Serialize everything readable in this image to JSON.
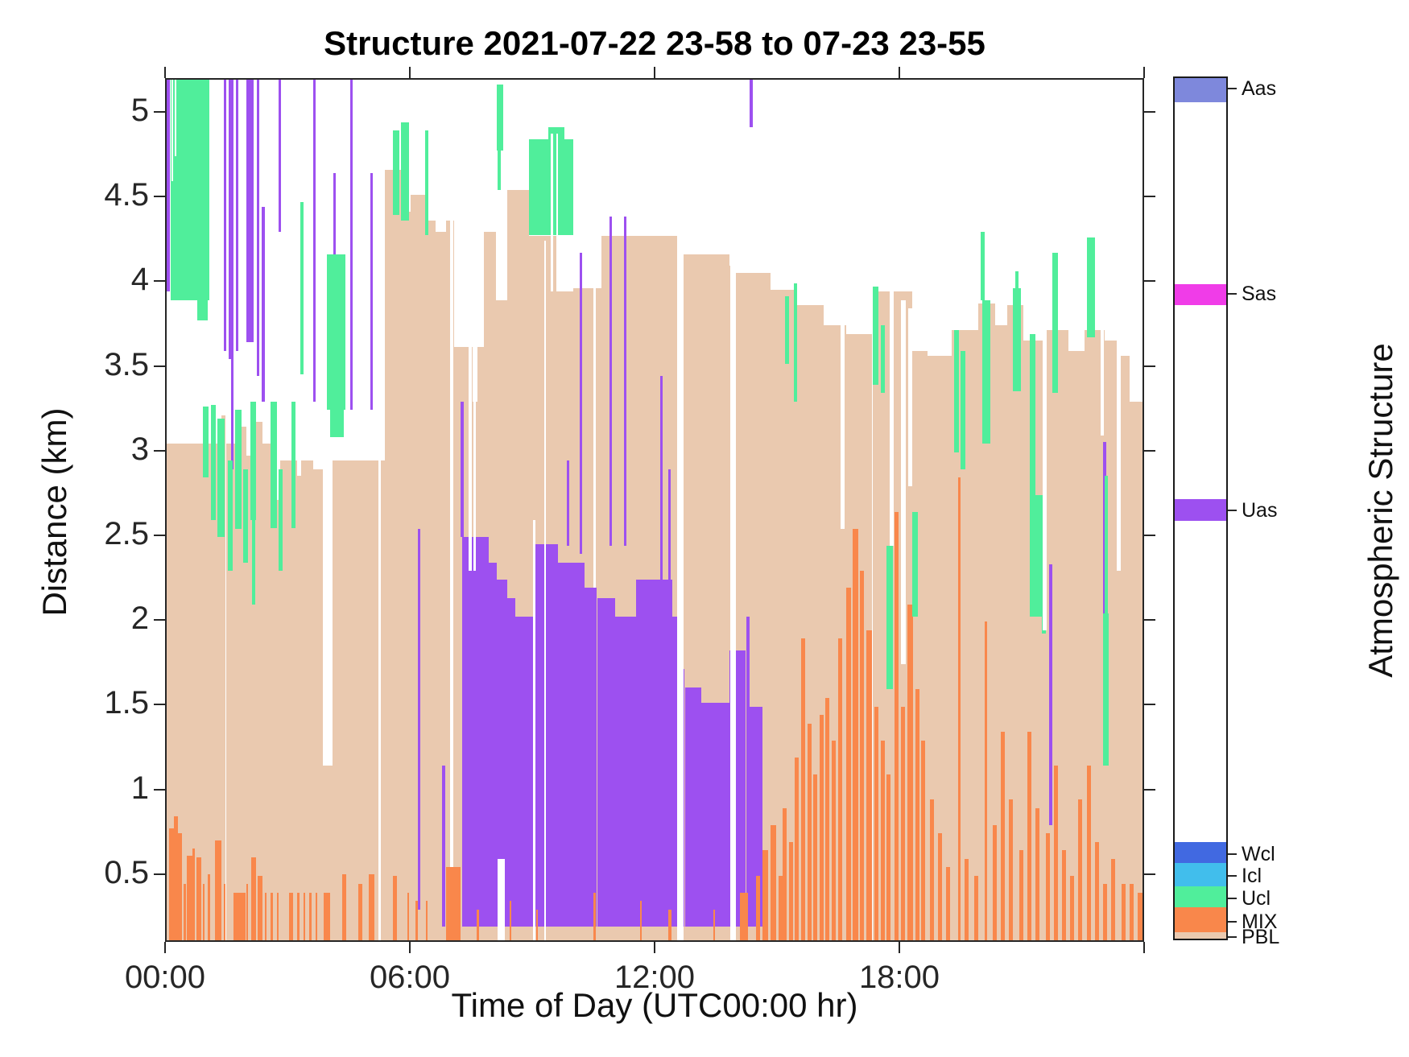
{
  "title": "Structure 2021-07-22 23-58 to 07-23 23-55",
  "chart_data": {
    "type": "area",
    "title": "Structure 2021-07-22 23-58 to 07-23 23-55",
    "xlabel": "Time of Day (UTC00:00 hr)",
    "ylabel": "Distance (km)",
    "right_label": "Atmospheric Structure",
    "xlim": [
      0,
      24
    ],
    "ylim": [
      0.1,
      5.2
    ],
    "baseline": 0.1,
    "grid": false,
    "xticks": [
      {
        "value": 0,
        "label": "00:00"
      },
      {
        "value": 6,
        "label": "06:00"
      },
      {
        "value": 12,
        "label": "12:00"
      },
      {
        "value": 18,
        "label": "18:00"
      },
      {
        "value": 24,
        "label": ""
      }
    ],
    "yticks": [
      {
        "value": 5,
        "label": "5"
      },
      {
        "value": 4.5,
        "label": "4.5"
      },
      {
        "value": 4,
        "label": "4"
      },
      {
        "value": 3.5,
        "label": "3.5"
      },
      {
        "value": 3,
        "label": "3"
      },
      {
        "value": 2.5,
        "label": "2.5"
      },
      {
        "value": 2,
        "label": "2"
      },
      {
        "value": 1.5,
        "label": "1.5"
      },
      {
        "value": 1,
        "label": "1"
      },
      {
        "value": 0.5,
        "label": "0.5"
      }
    ],
    "colors": {
      "pbl": "#EAC9AF",
      "mix": "#F9874B",
      "ucl": "#50EE9B",
      "icl": "#41BEEC",
      "wcl": "#4169E1",
      "uas": "#9D50F0",
      "sas": "#F03CE8",
      "aas": "#7E88DC",
      "gap": "#FFFFFF",
      "axis": "#262626"
    },
    "pbl_bars": [
      [
        0,
        0.9,
        3.05
      ],
      [
        0.9,
        1.0,
        2.95
      ],
      [
        1.0,
        1.35,
        3.05
      ],
      [
        1.35,
        1.45,
        3.22
      ],
      [
        1.45,
        1.8,
        3.05
      ],
      [
        1.8,
        1.95,
        3.15
      ],
      [
        1.95,
        2.15,
        2.98
      ],
      [
        2.15,
        2.35,
        3.18
      ],
      [
        2.35,
        2.6,
        3.05
      ],
      [
        2.6,
        2.78,
        2.72
      ],
      [
        2.78,
        3.2,
        2.95
      ],
      [
        3.2,
        3.3,
        2.86
      ],
      [
        3.3,
        3.6,
        2.95
      ],
      [
        3.6,
        3.83,
        2.9
      ],
      [
        3.83,
        4.07,
        1.15
      ],
      [
        4.07,
        5.35,
        2.95
      ],
      [
        5.35,
        5.6,
        4.67
      ],
      [
        5.6,
        5.7,
        4.42
      ],
      [
        5.7,
        5.78,
        4.67
      ],
      [
        5.78,
        5.98,
        4.42
      ],
      [
        5.98,
        6.35,
        4.52
      ],
      [
        6.35,
        6.6,
        4.37
      ],
      [
        6.6,
        6.85,
        4.3
      ],
      [
        6.85,
        7.05,
        4.37
      ],
      [
        7.05,
        7.5,
        3.62
      ],
      [
        7.5,
        7.62,
        3.3
      ],
      [
        7.62,
        7.78,
        3.62
      ],
      [
        7.78,
        8.08,
        4.3
      ],
      [
        8.08,
        8.35,
        3.9
      ],
      [
        8.35,
        8.88,
        4.55
      ],
      [
        8.88,
        9.6,
        4.28
      ],
      [
        9.6,
        9.96,
        3.95
      ],
      [
        9.96,
        10.65,
        3.97
      ],
      [
        10.65,
        12.65,
        4.28
      ],
      [
        12.65,
        13.8,
        4.17
      ],
      [
        13.8,
        13.95,
        4.1
      ],
      [
        13.95,
        14.8,
        4.06
      ],
      [
        14.8,
        15.4,
        3.96
      ],
      [
        15.4,
        16.1,
        3.87
      ],
      [
        16.1,
        16.65,
        3.75
      ],
      [
        16.65,
        17.3,
        3.7
      ],
      [
        17.3,
        18.28,
        3.95
      ],
      [
        18.28,
        18.65,
        3.6
      ],
      [
        18.65,
        19.25,
        3.57
      ],
      [
        19.25,
        19.9,
        3.72
      ],
      [
        19.9,
        20.3,
        3.88
      ],
      [
        20.3,
        20.6,
        3.75
      ],
      [
        20.6,
        21.0,
        3.87
      ],
      [
        21.0,
        21.5,
        3.66
      ],
      [
        21.5,
        22.1,
        3.72
      ],
      [
        22.1,
        22.5,
        3.6
      ],
      [
        22.5,
        23.0,
        3.72
      ],
      [
        23.0,
        23.38,
        3.66
      ],
      [
        23.38,
        23.6,
        3.57
      ],
      [
        23.6,
        23.92,
        3.3
      ]
    ],
    "mix_bars": [
      [
        0.05,
        0.18,
        0.78
      ],
      [
        0.18,
        0.28,
        0.85
      ],
      [
        0.28,
        0.38,
        0.75
      ],
      [
        0.42,
        0.47,
        0.45
      ],
      [
        0.5,
        0.63,
        0.62
      ],
      [
        0.63,
        0.7,
        0.66
      ],
      [
        0.73,
        0.85,
        0.61
      ],
      [
        0.88,
        0.93,
        0.45
      ],
      [
        1.0,
        1.07,
        0.51
      ],
      [
        1.18,
        1.35,
        0.71
      ],
      [
        1.4,
        1.45,
        0.45
      ],
      [
        1.64,
        1.93,
        0.4
      ],
      [
        1.95,
        2.0,
        0.45
      ],
      [
        2.07,
        2.2,
        0.61
      ],
      [
        2.23,
        2.35,
        0.5
      ],
      [
        2.4,
        2.45,
        0.4
      ],
      [
        2.55,
        2.6,
        0.4
      ],
      [
        2.7,
        2.75,
        0.4
      ],
      [
        3.0,
        3.1,
        0.4
      ],
      [
        3.2,
        3.25,
        0.4
      ],
      [
        3.35,
        3.4,
        0.4
      ],
      [
        3.5,
        3.55,
        0.4
      ],
      [
        3.65,
        3.7,
        0.4
      ],
      [
        3.85,
        4.0,
        0.4
      ],
      [
        4.3,
        4.4,
        0.51
      ],
      [
        4.7,
        4.8,
        0.45
      ],
      [
        4.95,
        5.1,
        0.51
      ],
      [
        5.55,
        5.65,
        0.5
      ],
      [
        5.9,
        5.95,
        0.4
      ],
      [
        6.1,
        6.15,
        0.35
      ],
      [
        6.35,
        6.4,
        0.35
      ],
      [
        6.85,
        7.2,
        0.55
      ],
      [
        7.6,
        7.65,
        0.3
      ],
      [
        8.4,
        8.45,
        0.35
      ],
      [
        9.05,
        9.1,
        0.3
      ],
      [
        10.45,
        10.52,
        0.4
      ],
      [
        11.6,
        11.65,
        0.35
      ],
      [
        12.3,
        12.38,
        0.3
      ],
      [
        13.4,
        13.45,
        0.3
      ],
      [
        14.05,
        14.25,
        0.4
      ],
      [
        14.45,
        14.55,
        0.5
      ],
      [
        14.6,
        14.75,
        0.65
      ],
      [
        14.8,
        14.95,
        0.8
      ],
      [
        15.0,
        15.1,
        0.5
      ],
      [
        15.1,
        15.2,
        0.9
      ],
      [
        15.25,
        15.35,
        0.7
      ],
      [
        15.4,
        15.5,
        1.2
      ],
      [
        15.55,
        15.65,
        1.9
      ],
      [
        15.7,
        15.8,
        1.4
      ],
      [
        15.85,
        15.95,
        1.1
      ],
      [
        16.0,
        16.1,
        1.45
      ],
      [
        16.15,
        16.25,
        1.55
      ],
      [
        16.3,
        16.4,
        1.3
      ],
      [
        16.45,
        16.55,
        1.9
      ],
      [
        16.65,
        16.78,
        2.2
      ],
      [
        16.82,
        16.95,
        2.55
      ],
      [
        17.0,
        17.1,
        2.3
      ],
      [
        17.15,
        17.3,
        1.95
      ],
      [
        17.35,
        17.45,
        1.5
      ],
      [
        17.5,
        17.6,
        1.3
      ],
      [
        17.65,
        17.75,
        1.1
      ],
      [
        17.85,
        17.95,
        2.65
      ],
      [
        18.0,
        18.1,
        1.5
      ],
      [
        18.15,
        18.3,
        2.1
      ],
      [
        18.35,
        18.45,
        1.6
      ],
      [
        18.5,
        18.6,
        1.3
      ],
      [
        18.7,
        18.8,
        0.95
      ],
      [
        18.9,
        19.0,
        0.75
      ],
      [
        19.1,
        19.2,
        0.55
      ],
      [
        19.4,
        19.47,
        2.85
      ],
      [
        19.55,
        19.65,
        0.6
      ],
      [
        19.8,
        19.9,
        0.5
      ],
      [
        20.05,
        20.12,
        2.0
      ],
      [
        20.25,
        20.35,
        0.8
      ],
      [
        20.45,
        20.55,
        1.35
      ],
      [
        20.65,
        20.75,
        0.95
      ],
      [
        20.9,
        21.0,
        0.65
      ],
      [
        21.1,
        21.2,
        1.35
      ],
      [
        21.3,
        21.4,
        0.9
      ],
      [
        21.55,
        21.65,
        0.75
      ],
      [
        21.75,
        21.85,
        1.15
      ],
      [
        21.95,
        22.05,
        0.65
      ],
      [
        22.15,
        22.25,
        0.5
      ],
      [
        22.35,
        22.45,
        0.95
      ],
      [
        22.55,
        22.65,
        1.15
      ],
      [
        22.75,
        22.85,
        0.7
      ],
      [
        22.95,
        23.05,
        0.45
      ],
      [
        23.15,
        23.25,
        0.6
      ],
      [
        23.4,
        23.5,
        0.45
      ],
      [
        23.6,
        23.7,
        0.45
      ],
      [
        23.8,
        23.92,
        0.4
      ]
    ],
    "uas_segments": [
      [
        0.0,
        0.08,
        3.95,
        5.2
      ],
      [
        1.4,
        1.47,
        3.6,
        5.2
      ],
      [
        1.52,
        1.58,
        3.55,
        5.2
      ],
      [
        1.58,
        1.64,
        2.9,
        5.2
      ],
      [
        1.7,
        1.76,
        3.6,
        5.2
      ],
      [
        1.95,
        2.13,
        3.65,
        5.2
      ],
      [
        2.2,
        2.27,
        3.45,
        5.2
      ],
      [
        2.33,
        2.4,
        3.3,
        4.45
      ],
      [
        2.74,
        2.8,
        4.3,
        5.2
      ],
      [
        3.6,
        3.66,
        3.3,
        5.2
      ],
      [
        4.08,
        4.15,
        3.25,
        4.65
      ],
      [
        4.5,
        4.56,
        3.25,
        5.2
      ],
      [
        5.0,
        5.06,
        3.25,
        4.65
      ],
      [
        6.15,
        6.22,
        0.3,
        2.55
      ],
      [
        6.75,
        6.82,
        0.2,
        1.15
      ],
      [
        7.2,
        7.28,
        2.5,
        3.3
      ],
      [
        9.8,
        9.87,
        2.45,
        2.95
      ],
      [
        10.12,
        10.18,
        2.4,
        4.18
      ],
      [
        10.85,
        10.92,
        2.45,
        4.39
      ],
      [
        11.2,
        11.27,
        2.45,
        4.39
      ],
      [
        12.1,
        12.16,
        2.25,
        3.45
      ],
      [
        12.3,
        12.36,
        2.25,
        2.9
      ],
      [
        14.28,
        14.36,
        4.92,
        5.2
      ],
      [
        17.88,
        17.95,
        1.55,
        2.55
      ],
      [
        21.64,
        21.71,
        0.8,
        2.34
      ],
      [
        22.95,
        23.03,
        2.03,
        3.06
      ],
      [
        7.25,
        7.9,
        0.2,
        2.5
      ],
      [
        7.9,
        8.1,
        0.2,
        2.35
      ],
      [
        8.1,
        8.35,
        0.2,
        2.25
      ],
      [
        8.35,
        8.55,
        0.2,
        2.14
      ],
      [
        8.55,
        9.0,
        0.2,
        2.03
      ],
      [
        9.0,
        9.6,
        0.2,
        2.46
      ],
      [
        9.6,
        10.25,
        0.2,
        2.35
      ],
      [
        10.25,
        10.55,
        0.2,
        2.2
      ],
      [
        10.55,
        11.0,
        0.2,
        2.14
      ],
      [
        11.0,
        11.5,
        0.2,
        2.03
      ],
      [
        11.5,
        12.4,
        0.2,
        2.25
      ],
      [
        12.4,
        12.55,
        0.2,
        2.03
      ],
      [
        12.55,
        12.7,
        0.2,
        1.72
      ],
      [
        12.7,
        13.1,
        0.2,
        1.61
      ],
      [
        13.1,
        13.8,
        0.2,
        1.52
      ],
      [
        13.8,
        14.2,
        0.2,
        1.83
      ],
      [
        14.2,
        14.28,
        0.2,
        2.03
      ],
      [
        14.28,
        14.6,
        0.2,
        1.5
      ]
    ],
    "ucl_segments": [
      [
        0.1,
        1.05,
        3.9,
        5.2
      ],
      [
        0.75,
        1.0,
        3.78,
        3.9
      ],
      [
        0.88,
        1.02,
        2.85,
        3.27
      ],
      [
        1.08,
        1.2,
        2.6,
        3.28
      ],
      [
        1.25,
        1.42,
        2.5,
        3.2
      ],
      [
        1.5,
        1.62,
        2.3,
        2.95
      ],
      [
        1.67,
        1.83,
        2.55,
        3.25
      ],
      [
        1.88,
        2.0,
        2.35,
        2.9
      ],
      [
        2.05,
        2.2,
        2.6,
        3.3
      ],
      [
        2.1,
        2.18,
        2.1,
        2.6
      ],
      [
        2.55,
        2.7,
        2.55,
        3.3
      ],
      [
        2.75,
        2.85,
        2.3,
        2.9
      ],
      [
        3.05,
        3.15,
        2.55,
        3.3
      ],
      [
        3.28,
        3.35,
        3.46,
        4.48
      ],
      [
        3.92,
        4.38,
        3.25,
        4.17
      ],
      [
        4.0,
        4.35,
        3.09,
        3.25
      ],
      [
        5.55,
        5.7,
        4.4,
        4.9
      ],
      [
        5.75,
        5.95,
        4.37,
        4.95
      ],
      [
        6.33,
        6.42,
        4.28,
        4.9
      ],
      [
        8.1,
        8.25,
        4.78,
        5.17
      ],
      [
        8.12,
        8.2,
        4.55,
        4.78
      ],
      [
        8.88,
        9.96,
        4.28,
        4.85
      ],
      [
        9.35,
        9.75,
        4.85,
        4.92
      ],
      [
        15.15,
        15.25,
        3.52,
        3.92
      ],
      [
        15.38,
        15.46,
        3.3,
        4.0
      ],
      [
        17.3,
        17.45,
        3.4,
        3.98
      ],
      [
        17.5,
        17.6,
        3.35,
        3.75
      ],
      [
        17.65,
        17.8,
        1.6,
        2.45
      ],
      [
        18.28,
        18.42,
        2.03,
        2.65
      ],
      [
        19.3,
        19.42,
        3.0,
        3.72
      ],
      [
        19.46,
        19.58,
        2.9,
        3.6
      ],
      [
        19.95,
        20.05,
        3.9,
        4.3
      ],
      [
        20.0,
        20.2,
        3.05,
        3.9
      ],
      [
        20.75,
        20.95,
        3.36,
        3.97
      ],
      [
        20.8,
        20.88,
        3.97,
        4.07
      ],
      [
        21.15,
        21.3,
        2.55,
        3.7
      ],
      [
        21.15,
        21.55,
        2.03,
        2.75
      ],
      [
        21.45,
        21.55,
        1.93,
        2.03
      ],
      [
        21.7,
        21.85,
        3.35,
        4.18
      ],
      [
        22.55,
        22.75,
        3.68,
        4.27
      ],
      [
        22.95,
        23.1,
        1.15,
        2.05
      ],
      [
        23.0,
        23.08,
        2.05,
        2.86
      ]
    ],
    "gap_segments": [
      [
        0.12,
        0.16,
        4.6,
        5.2
      ],
      [
        0.2,
        0.24,
        4.75,
        5.2
      ],
      [
        5.18,
        5.25,
        0.1,
        2.95
      ],
      [
        6.95,
        7.03,
        0.55,
        4.37
      ],
      [
        7.4,
        7.48,
        2.3,
        3.65
      ],
      [
        7.52,
        7.58,
        2.3,
        3.65
      ],
      [
        8.12,
        8.3,
        0.1,
        0.6
      ],
      [
        8.97,
        9.03,
        0.1,
        2.6
      ],
      [
        9.25,
        9.3,
        0.1,
        4.25
      ],
      [
        9.42,
        9.47,
        3.95,
        4.88
      ],
      [
        9.55,
        9.6,
        3.95,
        4.88
      ],
      [
        10.45,
        10.52,
        2.2,
        4.3
      ],
      [
        12.52,
        12.68,
        0.1,
        4.28
      ],
      [
        13.82,
        13.95,
        0.1,
        4.1
      ],
      [
        16.52,
        16.62,
        2.55,
        3.8
      ],
      [
        17.72,
        17.82,
        2.45,
        4.0
      ],
      [
        18.0,
        18.12,
        1.75,
        3.9
      ],
      [
        18.17,
        18.28,
        2.8,
        3.85
      ],
      [
        21.48,
        21.58,
        1.95,
        3.8
      ],
      [
        22.9,
        22.98,
        3.1,
        3.9
      ],
      [
        23.28,
        23.38,
        2.3,
        3.66
      ]
    ],
    "legend": {
      "title": "Atmospheric Structure",
      "entries": [
        {
          "label": "Aas",
          "series": "aas",
          "from": 0.0,
          "to": 0.028,
          "tick": 0.014
        },
        {
          "label": "Sas",
          "series": "sas",
          "from": 0.2395,
          "to": 0.2637,
          "tick": 0.2516
        },
        {
          "label": "Uas",
          "series": "uas",
          "from": 0.4893,
          "to": 0.5145,
          "tick": 0.5019
        },
        {
          "label": "Wcl",
          "series": "wcl",
          "from": 0.888,
          "to": 0.9124,
          "tick": 0.9
        },
        {
          "label": "Icl",
          "series": "icl",
          "from": 0.9124,
          "to": 0.9394,
          "tick": 0.9259
        },
        {
          "label": "Ucl",
          "series": "ucl",
          "from": 0.9394,
          "to": 0.9637,
          "tick": 0.9516
        },
        {
          "label": "MIX",
          "series": "mix",
          "from": 0.9637,
          "to": 0.9925,
          "tick": 0.9781
        },
        {
          "label": "PBL",
          "series": "pbl",
          "from": 0.9925,
          "to": 1.0,
          "tick": 0.9963
        }
      ]
    }
  }
}
